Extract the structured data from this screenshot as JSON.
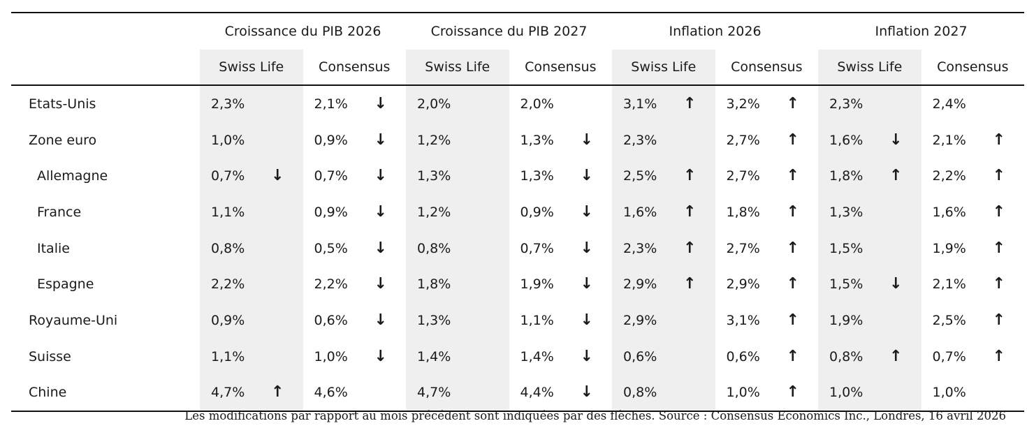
{
  "groups": [
    {
      "label": "Croissance du PIB 2026"
    },
    {
      "label": "Croissance du PIB 2027"
    },
    {
      "label": "Inflation 2026"
    },
    {
      "label": "Inflation 2027"
    }
  ],
  "subheaders": [
    "Swiss Life",
    "Consensus",
    "Swiss Life",
    "Consensus",
    "Swiss Life",
    "Consensus",
    "Swiss Life",
    "Consensus"
  ],
  "arrows": {
    "up": "↑",
    "down": "↓"
  },
  "rows": [
    {
      "country": "Etats-Unis",
      "indent": false,
      "cells": [
        {
          "v": "2,3%",
          "a": ""
        },
        {
          "v": "2,1%",
          "a": "down"
        },
        {
          "v": "2,0%",
          "a": ""
        },
        {
          "v": "2,0%",
          "a": ""
        },
        {
          "v": "3,1%",
          "a": "up"
        },
        {
          "v": "3,2%",
          "a": "up"
        },
        {
          "v": "2,3%",
          "a": ""
        },
        {
          "v": "2,4%",
          "a": ""
        }
      ]
    },
    {
      "country": "Zone euro",
      "indent": false,
      "cells": [
        {
          "v": "1,0%",
          "a": ""
        },
        {
          "v": "0,9%",
          "a": "down"
        },
        {
          "v": "1,2%",
          "a": ""
        },
        {
          "v": "1,3%",
          "a": "down"
        },
        {
          "v": "2,3%",
          "a": ""
        },
        {
          "v": "2,7%",
          "a": "up"
        },
        {
          "v": "1,6%",
          "a": "down"
        },
        {
          "v": "2,1%",
          "a": "up"
        }
      ]
    },
    {
      "country": "Allemagne",
      "indent": true,
      "cells": [
        {
          "v": "0,7%",
          "a": "down"
        },
        {
          "v": "0,7%",
          "a": "down"
        },
        {
          "v": "1,3%",
          "a": ""
        },
        {
          "v": "1,3%",
          "a": "down"
        },
        {
          "v": "2,5%",
          "a": "up"
        },
        {
          "v": "2,7%",
          "a": "up"
        },
        {
          "v": "1,8%",
          "a": "up"
        },
        {
          "v": "2,2%",
          "a": "up"
        }
      ]
    },
    {
      "country": "France",
      "indent": true,
      "cells": [
        {
          "v": "1,1%",
          "a": ""
        },
        {
          "v": "0,9%",
          "a": "down"
        },
        {
          "v": "1,2%",
          "a": ""
        },
        {
          "v": "0,9%",
          "a": "down"
        },
        {
          "v": "1,6%",
          "a": "up"
        },
        {
          "v": "1,8%",
          "a": "up"
        },
        {
          "v": "1,3%",
          "a": ""
        },
        {
          "v": "1,6%",
          "a": "up"
        }
      ]
    },
    {
      "country": "Italie",
      "indent": true,
      "cells": [
        {
          "v": "0,8%",
          "a": ""
        },
        {
          "v": "0,5%",
          "a": "down"
        },
        {
          "v": "0,8%",
          "a": ""
        },
        {
          "v": "0,7%",
          "a": "down"
        },
        {
          "v": "2,3%",
          "a": "up"
        },
        {
          "v": "2,7%",
          "a": "up"
        },
        {
          "v": "1,5%",
          "a": ""
        },
        {
          "v": "1,9%",
          "a": "up"
        }
      ]
    },
    {
      "country": "Espagne",
      "indent": true,
      "cells": [
        {
          "v": "2,2%",
          "a": ""
        },
        {
          "v": "2,2%",
          "a": "down"
        },
        {
          "v": "1,8%",
          "a": ""
        },
        {
          "v": "1,9%",
          "a": "down"
        },
        {
          "v": "2,9%",
          "a": "up"
        },
        {
          "v": "2,9%",
          "a": "up"
        },
        {
          "v": "1,5%",
          "a": "down"
        },
        {
          "v": "2,1%",
          "a": "up"
        }
      ]
    },
    {
      "country": "Royaume-Uni",
      "indent": false,
      "cells": [
        {
          "v": "0,9%",
          "a": ""
        },
        {
          "v": "0,6%",
          "a": "down"
        },
        {
          "v": "1,3%",
          "a": ""
        },
        {
          "v": "1,1%",
          "a": "down"
        },
        {
          "v": "2,9%",
          "a": ""
        },
        {
          "v": "3,1%",
          "a": "up"
        },
        {
          "v": "1,9%",
          "a": ""
        },
        {
          "v": "2,5%",
          "a": "up"
        }
      ]
    },
    {
      "country": "Suisse",
      "indent": false,
      "cells": [
        {
          "v": "1,1%",
          "a": ""
        },
        {
          "v": "1,0%",
          "a": "down"
        },
        {
          "v": "1,4%",
          "a": ""
        },
        {
          "v": "1,4%",
          "a": "down"
        },
        {
          "v": "0,6%",
          "a": ""
        },
        {
          "v": "0,6%",
          "a": "up"
        },
        {
          "v": "0,8%",
          "a": "up"
        },
        {
          "v": "0,7%",
          "a": "up"
        }
      ]
    },
    {
      "country": "Chine",
      "indent": false,
      "cells": [
        {
          "v": "4,7%",
          "a": "up"
        },
        {
          "v": "4,6%",
          "a": ""
        },
        {
          "v": "4,7%",
          "a": ""
        },
        {
          "v": "4,4%",
          "a": "down"
        },
        {
          "v": "0,8%",
          "a": ""
        },
        {
          "v": "1,0%",
          "a": "up"
        },
        {
          "v": "1,0%",
          "a": ""
        },
        {
          "v": "1,0%",
          "a": ""
        }
      ]
    }
  ],
  "footnote": "Les modifications par rapport au mois précédent sont indiquées par des flèches. Source : Consensus Economics Inc., Londres, 16 avril 2026",
  "colors": {
    "shade": "#efefef",
    "rule": "#111111",
    "text": "#1a1a1a"
  }
}
